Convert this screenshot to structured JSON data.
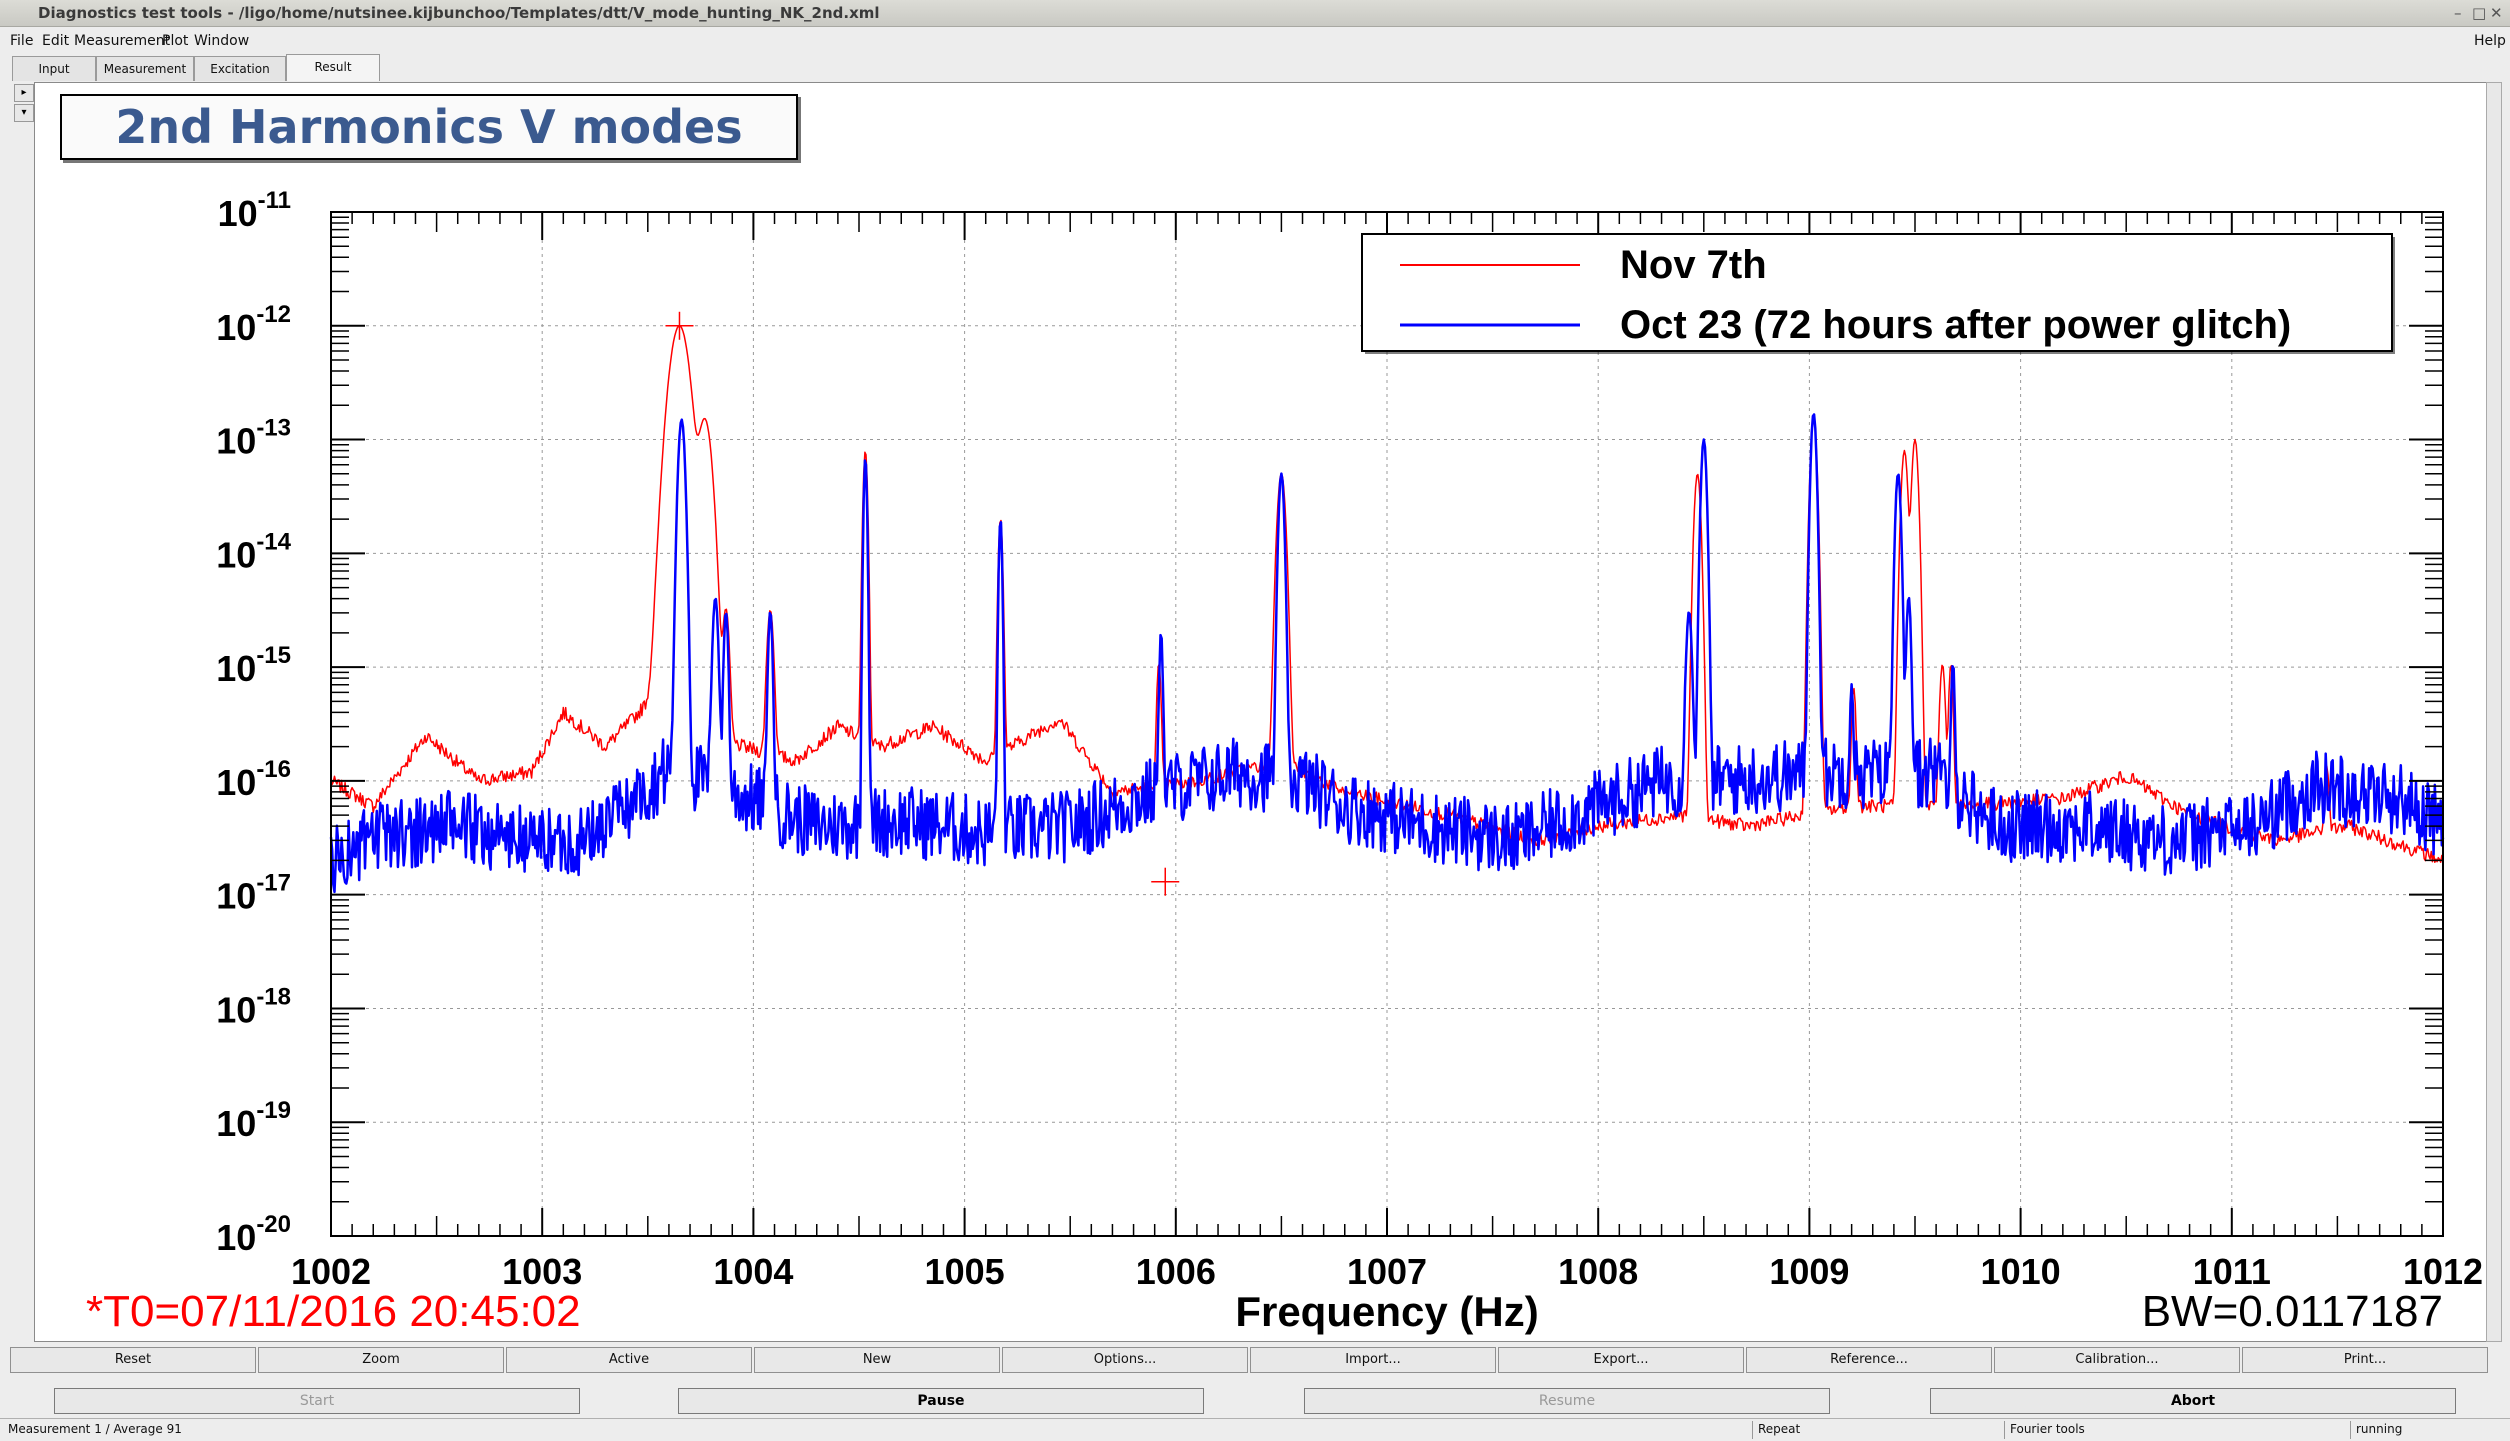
{
  "window": {
    "title": "Diagnostics test tools - /ligo/home/nutsinee.kijbunchoo/Templates/dtt/V_mode_hunting_NK_2nd.xml",
    "help": "Help"
  },
  "menu": {
    "file": "File",
    "edit": "Edit",
    "measurement": "Measurement",
    "plot": "Plot",
    "window": "Window"
  },
  "tabs": [
    "Input",
    "Measurement",
    "Excitation",
    "Result"
  ],
  "side_buttons": [
    "▸",
    "▾"
  ],
  "plot": {
    "title": "2nd Harmonics V modes",
    "t0": "*T0=07/11/2016 20:45:02",
    "bw": "BW=0.0117187"
  },
  "chart_data": {
    "type": "line",
    "title": "2nd Harmonics V modes",
    "xlabel": "Frequency (Hz)",
    "ylabel": "",
    "xlim": [
      1002,
      1012
    ],
    "ylim": [
      1e-20,
      1e-11
    ],
    "yscale": "log",
    "grid": true,
    "legend_position": "top-right",
    "x_ticks": [
      "1002",
      "1003",
      "1004",
      "1005",
      "1006",
      "1007",
      "1008",
      "1009",
      "1010",
      "1011",
      "1012"
    ],
    "y_tick_base": "10",
    "y_tick_exponents": [
      "-11",
      "-12",
      "-13",
      "-14",
      "-15",
      "-16",
      "-17",
      "-18",
      "-19",
      "-20"
    ],
    "series": [
      {
        "name": "Nov 7th",
        "color": "#ff0000",
        "baseline": [
          [
            1002,
            1e-16
          ],
          [
            1002.2,
            6e-17
          ],
          [
            1002.45,
            2.5e-16
          ],
          [
            1002.7,
            1e-16
          ],
          [
            1002.95,
            1.2e-16
          ],
          [
            1003.1,
            4e-16
          ],
          [
            1003.3,
            2e-16
          ],
          [
            1003.55,
            6e-16
          ],
          [
            1003.7,
            3e-16
          ],
          [
            1003.95,
            2e-16
          ],
          [
            1004.2,
            1.5e-16
          ],
          [
            1004.4,
            3e-16
          ],
          [
            1004.6,
            2e-16
          ],
          [
            1004.85,
            3e-16
          ],
          [
            1005.1,
            1.5e-16
          ],
          [
            1005.45,
            3.5e-16
          ],
          [
            1005.7,
            8e-17
          ],
          [
            1006.1,
            1e-16
          ],
          [
            1006.5,
            1.5e-16
          ],
          [
            1006.8,
            8e-17
          ],
          [
            1007.3,
            5e-17
          ],
          [
            1007.7,
            3e-17
          ],
          [
            1008.0,
            4e-17
          ],
          [
            1008.4,
            5e-17
          ],
          [
            1008.7,
            4e-17
          ],
          [
            1009.2,
            6e-17
          ],
          [
            1009.7,
            6e-17
          ],
          [
            1010.2,
            7e-17
          ],
          [
            1010.5,
            1.1e-16
          ],
          [
            1010.8,
            5e-17
          ],
          [
            1011.2,
            3e-17
          ],
          [
            1011.55,
            4e-17
          ],
          [
            1012,
            2e-17
          ]
        ],
        "peaks": [
          [
            1003.65,
            1e-12,
            0.035
          ],
          [
            1003.77,
            1.5e-13,
            0.025
          ],
          [
            1003.87,
            3e-15,
            0.012
          ],
          [
            1004.08,
            3e-15,
            0.012
          ],
          [
            1004.53,
            8e-14,
            0.008
          ],
          [
            1005.17,
            2e-14,
            0.008
          ],
          [
            1005.92,
            1e-15,
            0.008
          ],
          [
            1006.5,
            5e-14,
            0.015
          ],
          [
            1008.47,
            5e-14,
            0.012
          ],
          [
            1009.02,
            1.5e-13,
            0.012
          ],
          [
            1009.21,
            6e-16,
            0.008
          ],
          [
            1009.45,
            8e-14,
            0.012
          ],
          [
            1009.5,
            1e-13,
            0.012
          ],
          [
            1009.63,
            1e-15,
            0.01
          ],
          [
            1009.67,
            1e-15,
            0.008
          ],
          [
            1011.45,
            1e-16,
            0.008
          ]
        ]
      },
      {
        "name": "Oct 23 (72 hours after power glitch)",
        "color": "#0000ff",
        "baseline": [
          [
            1002,
            2e-17
          ],
          [
            1002.3,
            3.5e-17
          ],
          [
            1002.6,
            4e-17
          ],
          [
            1002.9,
            3e-17
          ],
          [
            1003.2,
            3e-17
          ],
          [
            1003.4,
            6e-17
          ],
          [
            1003.6,
            1.3e-16
          ],
          [
            1003.9,
            8e-17
          ],
          [
            1004.3,
            4e-17
          ],
          [
            1004.7,
            4.5e-17
          ],
          [
            1005.1,
            3.5e-17
          ],
          [
            1005.5,
            4e-17
          ],
          [
            1005.9,
            8e-17
          ],
          [
            1006.3,
            1.2e-16
          ],
          [
            1006.6,
            1e-16
          ],
          [
            1006.8,
            6e-17
          ],
          [
            1007.2,
            4e-17
          ],
          [
            1007.6,
            3e-17
          ],
          [
            1008.0,
            6e-17
          ],
          [
            1008.3,
            1e-16
          ],
          [
            1008.6,
            1e-16
          ],
          [
            1009.1,
            1.2e-16
          ],
          [
            1009.6,
            1.1e-16
          ],
          [
            1009.9,
            4e-17
          ],
          [
            1010.3,
            4e-17
          ],
          [
            1010.7,
            3e-17
          ],
          [
            1011.1,
            4e-17
          ],
          [
            1011.4,
            9e-17
          ],
          [
            1011.8,
            7e-17
          ],
          [
            1012,
            4e-17
          ]
        ],
        "peaks": [
          [
            1003.66,
            1.5e-13,
            0.012
          ],
          [
            1003.82,
            4e-15,
            0.01
          ],
          [
            1003.87,
            3e-15,
            0.008
          ],
          [
            1004.08,
            3e-15,
            0.008
          ],
          [
            1004.53,
            7e-14,
            0.006
          ],
          [
            1005.17,
            2e-14,
            0.006
          ],
          [
            1005.93,
            2e-15,
            0.006
          ],
          [
            1006.5,
            5e-14,
            0.01
          ],
          [
            1008.43,
            3e-15,
            0.01
          ],
          [
            1008.5,
            1e-13,
            0.01
          ],
          [
            1009.02,
            1.7e-13,
            0.01
          ],
          [
            1009.2,
            6e-16,
            0.006
          ],
          [
            1009.42,
            5e-14,
            0.01
          ],
          [
            1009.47,
            4e-15,
            0.008
          ],
          [
            1009.57,
            1e-16,
            0.006
          ],
          [
            1009.68,
            1e-15,
            0.006
          ]
        ]
      }
    ]
  },
  "buttons_row1": [
    "Reset",
    "Zoom",
    "Active",
    "New",
    "Options...",
    "Import...",
    "Export...",
    "Reference...",
    "Calibration...",
    "Print..."
  ],
  "buttons_row2": [
    "Start",
    "Pause",
    "Resume",
    "Abort"
  ],
  "status": {
    "measurement": "Measurement 1 / Average 91",
    "mode": "Repeat",
    "tool": "Fourier tools",
    "state": "running"
  }
}
